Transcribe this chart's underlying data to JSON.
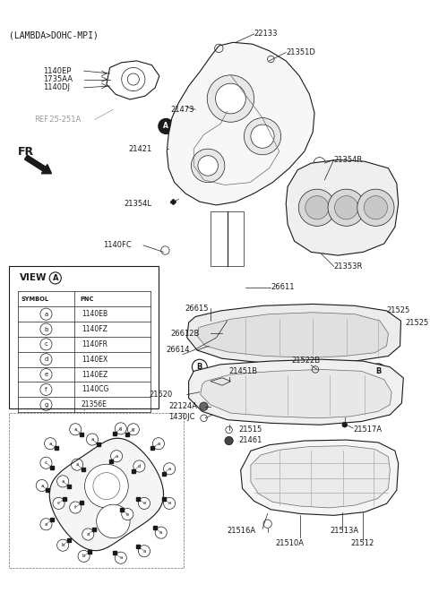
{
  "title": "(LAMBDA>DOHC-MPI)",
  "bg_color": "#ffffff",
  "fig_width": 4.8,
  "fig_height": 6.62,
  "dpi": 100,
  "table_symbols": [
    "a",
    "b",
    "c",
    "d",
    "e",
    "f",
    "g"
  ],
  "table_pncs": [
    "1140EB",
    "1140FZ",
    "1140FR",
    "1140EX",
    "1140EZ",
    "1140CG",
    "21356E"
  ]
}
